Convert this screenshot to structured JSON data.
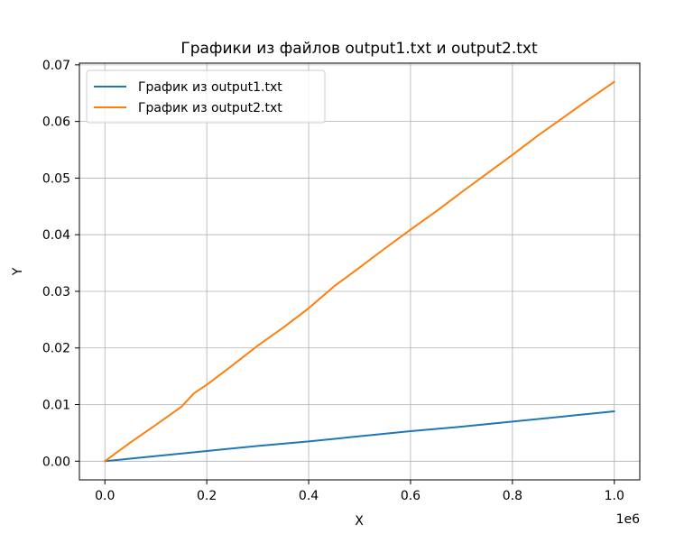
{
  "chart_data": {
    "type": "line",
    "title": "Графики из файлов output1.txt и output2.txt",
    "xlabel": "X",
    "ylabel": "Y",
    "x_offset_text": "1e6",
    "xlim": [
      -50000,
      1050000
    ],
    "ylim": [
      -0.0033,
      0.0703
    ],
    "x_ticks": [
      0,
      200000,
      400000,
      600000,
      800000,
      1000000
    ],
    "x_tick_labels": [
      "0.0",
      "0.2",
      "0.4",
      "0.6",
      "0.8",
      "1.0"
    ],
    "y_ticks": [
      0,
      0.01,
      0.02,
      0.03,
      0.04,
      0.05,
      0.06,
      0.07
    ],
    "y_tick_labels": [
      "0.00",
      "0.01",
      "0.02",
      "0.03",
      "0.04",
      "0.05",
      "0.06",
      "0.07"
    ],
    "grid": true,
    "legend_position": "top-left",
    "series": [
      {
        "name": "График из output1.txt",
        "color": "#1f77b4",
        "x": [
          0,
          100000,
          200000,
          300000,
          400000,
          500000,
          600000,
          700000,
          800000,
          900000,
          1000000
        ],
        "y": [
          0,
          0.0009,
          0.0018,
          0.0027,
          0.0035,
          0.0044,
          0.0053,
          0.0061,
          0.007,
          0.0079,
          0.0088
        ]
      },
      {
        "name": "График из output2.txt",
        "color": "#ff7f0e",
        "x": [
          0,
          50000,
          100000,
          150000,
          175000,
          200000,
          250000,
          300000,
          350000,
          400000,
          450000,
          500000,
          550000,
          600000,
          650000,
          700000,
          750000,
          800000,
          850000,
          900000,
          950000,
          1000000
        ],
        "y": [
          0,
          0.0033,
          0.0064,
          0.0096,
          0.012,
          0.0135,
          0.0169,
          0.0204,
          0.0236,
          0.027,
          0.0309,
          0.0342,
          0.0376,
          0.0409,
          0.0441,
          0.0475,
          0.0508,
          0.0541,
          0.0575,
          0.0607,
          0.0639,
          0.067
        ]
      }
    ]
  }
}
